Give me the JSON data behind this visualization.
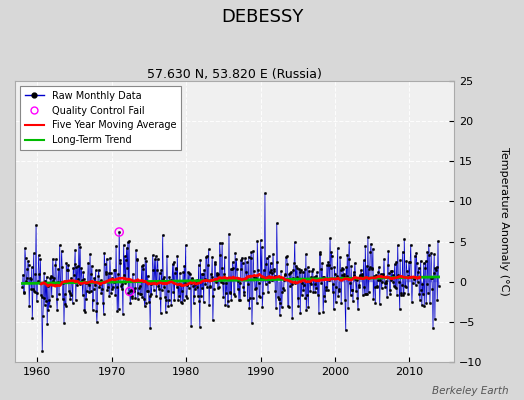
{
  "title": "DEBESSY",
  "subtitle": "57.630 N, 53.820 E (Russia)",
  "ylabel": "Temperature Anomaly (°C)",
  "credit": "Berkeley Earth",
  "xlim": [
    1957,
    2016
  ],
  "ylim": [
    -10,
    25
  ],
  "yticks": [
    -10,
    -5,
    0,
    5,
    10,
    15,
    20,
    25
  ],
  "xticks": [
    1960,
    1970,
    1980,
    1990,
    2000,
    2010
  ],
  "raw_color": "#0000cc",
  "moving_avg_color": "#ff0000",
  "trend_color": "#00bb00",
  "qc_fail_color": "#ff00ff",
  "plot_bg_color": "#f0f0f0",
  "fig_bg_color": "#d8d8d8",
  "title_fontsize": 13,
  "subtitle_fontsize": 9,
  "start_year": 1958,
  "end_year": 2013
}
